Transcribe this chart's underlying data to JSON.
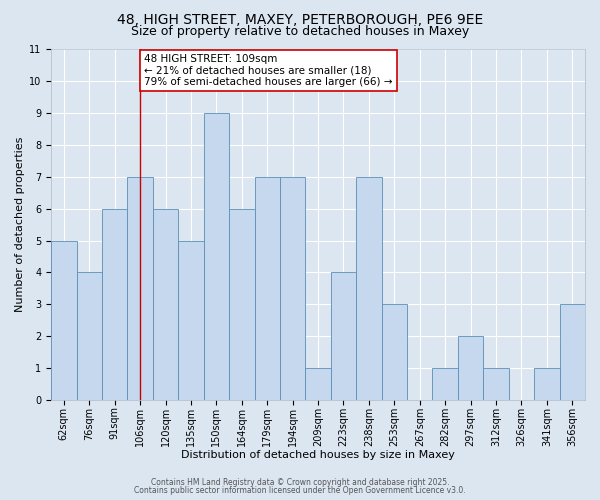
{
  "title": "48, HIGH STREET, MAXEY, PETERBOROUGH, PE6 9EE",
  "subtitle": "Size of property relative to detached houses in Maxey",
  "xlabel": "Distribution of detached houses by size in Maxey",
  "ylabel": "Number of detached properties",
  "xtick_labels": [
    "62sqm",
    "76sqm",
    "91sqm",
    "106sqm",
    "120sqm",
    "135sqm",
    "150sqm",
    "164sqm",
    "179sqm",
    "194sqm",
    "209sqm",
    "223sqm",
    "238sqm",
    "253sqm",
    "267sqm",
    "282sqm",
    "297sqm",
    "312sqm",
    "326sqm",
    "341sqm",
    "356sqm"
  ],
  "bar_heights": [
    5,
    4,
    6,
    7,
    6,
    5,
    9,
    6,
    7,
    7,
    1,
    4,
    7,
    3,
    0,
    1,
    2,
    1,
    0,
    1,
    3
  ],
  "bar_color": "#c5d8ed",
  "bar_edge_color": "#5b8db8",
  "background_color": "#dce6f1",
  "grid_color": "#ffffff",
  "vline_x_index": 3,
  "vline_color": "#cc0000",
  "annotation_text": "48 HIGH STREET: 109sqm\n← 21% of detached houses are smaller (18)\n79% of semi-detached houses are larger (66) →",
  "annotation_box_facecolor": "#ffffff",
  "annotation_box_edgecolor": "#cc0000",
  "ylim": [
    0,
    11
  ],
  "yticks": [
    0,
    1,
    2,
    3,
    4,
    5,
    6,
    7,
    8,
    9,
    10,
    11
  ],
  "footer_line1": "Contains HM Land Registry data © Crown copyright and database right 2025.",
  "footer_line2": "Contains public sector information licensed under the Open Government Licence v3.0.",
  "title_fontsize": 10,
  "subtitle_fontsize": 9,
  "xlabel_fontsize": 8,
  "ylabel_fontsize": 8,
  "tick_fontsize": 7,
  "annotation_fontsize": 7.5,
  "footer_fontsize": 5.5
}
